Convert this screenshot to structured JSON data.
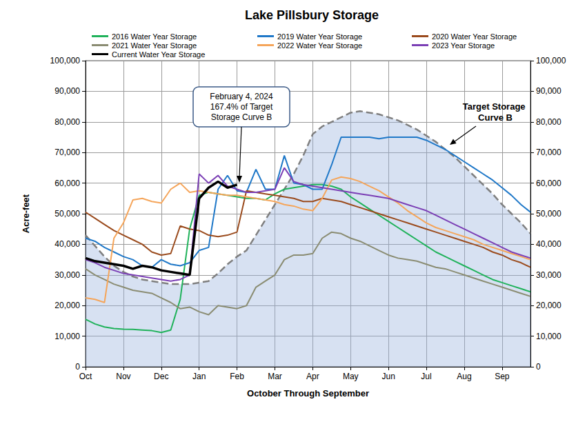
{
  "chart_data": {
    "type": "line",
    "title": "Lake Pillsbury Storage",
    "xlabel": "October Through September",
    "ylabel": "Acre-feet",
    "categories": [
      "Oct",
      null,
      null,
      null,
      "Nov",
      null,
      null,
      null,
      "Dec",
      null,
      null,
      null,
      "Jan",
      null,
      null,
      null,
      "Feb",
      null,
      null,
      null,
      "Mar",
      null,
      null,
      null,
      "Apr",
      null,
      null,
      null,
      "May",
      null,
      null,
      null,
      "Jun",
      null,
      null,
      null,
      "Jul",
      null,
      null,
      null,
      "Aug",
      null,
      null,
      null,
      "Sep",
      null,
      null,
      null
    ],
    "series": [
      {
        "name": "Target Storage Curve B",
        "type": "area",
        "line_style": "dashed",
        "color": "#7f7f7f",
        "values": [
          43000,
          39500,
          36000,
          33000,
          31000,
          29500,
          28500,
          28000,
          27500,
          27000,
          27000,
          27000,
          27500,
          28000,
          30500,
          33500,
          36000,
          38000,
          43000,
          48000,
          53000,
          58000,
          63000,
          69000,
          76000,
          78500,
          80000,
          81500,
          83000,
          83500,
          83000,
          82500,
          81500,
          80500,
          79000,
          77500,
          75500,
          73500,
          71000,
          68500,
          65500,
          62500,
          59500,
          56500,
          53000,
          50000,
          47000,
          43500
        ]
      },
      {
        "name": "2016 Water Year Storage",
        "color": "#1fb25a",
        "values": [
          15500,
          14000,
          13000,
          12500,
          12300,
          12200,
          12000,
          11800,
          11200,
          12000,
          22000,
          45000,
          56000,
          57000,
          56500,
          56000,
          55500,
          55000,
          55000,
          54500,
          56500,
          58000,
          58500,
          59000,
          59500,
          59500,
          59000,
          58000,
          55500,
          53500,
          51500,
          49500,
          47500,
          45500,
          43500,
          41500,
          39500,
          37500,
          36000,
          34500,
          33000,
          31500,
          30000,
          28500,
          27500,
          26500,
          25500,
          24500
        ]
      },
      {
        "name": "2019 Water Year Storage",
        "color": "#1f78c8",
        "values": [
          42000,
          41000,
          39000,
          37500,
          36000,
          35000,
          33000,
          32500,
          35000,
          33500,
          33000,
          34000,
          38000,
          39000,
          58000,
          62500,
          57500,
          57000,
          64500,
          58000,
          58000,
          69000,
          60000,
          59500,
          58000,
          58000,
          66000,
          75000,
          75000,
          75000,
          75000,
          74500,
          75000,
          75000,
          75000,
          75000,
          74000,
          72500,
          71000,
          69000,
          67000,
          65000,
          63000,
          61000,
          58500,
          56000,
          53000,
          50500
        ]
      },
      {
        "name": "2020 Water Year Storage",
        "color": "#9a4a1c",
        "values": [
          50500,
          48500,
          46500,
          44500,
          43000,
          41500,
          40000,
          37500,
          36500,
          37000,
          46000,
          45000,
          44500,
          43000,
          42500,
          43000,
          44000,
          57500,
          57000,
          56500,
          56000,
          55500,
          55000,
          54000,
          54000,
          55000,
          54500,
          54000,
          53000,
          52000,
          51000,
          50000,
          49000,
          48000,
          47000,
          46000,
          45000,
          44000,
          43000,
          42000,
          41000,
          40000,
          39000,
          37500,
          36500,
          35000,
          34000,
          32500
        ]
      },
      {
        "name": "2021 Water Year Storage",
        "color": "#8a8c72",
        "values": [
          32000,
          30000,
          28500,
          27000,
          26000,
          25000,
          24500,
          24000,
          22500,
          21000,
          19000,
          19500,
          18000,
          17000,
          20000,
          19500,
          19000,
          20000,
          26000,
          28000,
          30000,
          35000,
          36500,
          36500,
          37000,
          42000,
          44000,
          43500,
          42000,
          41000,
          39500,
          38000,
          36500,
          35500,
          35000,
          34500,
          33500,
          32500,
          32000,
          31000,
          30000,
          29000,
          28000,
          27000,
          26000,
          25000,
          24000,
          23000
        ]
      },
      {
        "name": "2022 Water Year Storage",
        "color": "#f5a55a",
        "values": [
          22500,
          22000,
          21000,
          42000,
          47000,
          54500,
          55000,
          54000,
          53500,
          58000,
          60000,
          57000,
          57500,
          57000,
          56500,
          56000,
          56000,
          55500,
          55000,
          54500,
          54000,
          53000,
          52500,
          51500,
          51000,
          55000,
          61000,
          62000,
          61500,
          60500,
          59000,
          57500,
          55500,
          53500,
          51000,
          49000,
          47000,
          45500,
          44500,
          43500,
          42500,
          41500,
          40000,
          39000,
          38000,
          37000,
          36000,
          35000
        ]
      },
      {
        "name": "2023 Year Storage",
        "color": "#7b3fb5",
        "values": [
          35000,
          34000,
          32500,
          31500,
          30500,
          30000,
          29500,
          29000,
          28500,
          28000,
          28500,
          30000,
          63000,
          60000,
          62500,
          59000,
          58000,
          57000,
          57000,
          57500,
          58000,
          65000,
          60500,
          59500,
          59000,
          58500,
          58000,
          57500,
          57000,
          56500,
          56000,
          55500,
          55000,
          54000,
          53000,
          52000,
          51000,
          49500,
          48000,
          46500,
          45000,
          43500,
          42000,
          40500,
          39000,
          37500,
          36500,
          35500
        ]
      },
      {
        "name": "Current Water Year Storage",
        "color": "#000000",
        "line_style": "thick",
        "values": [
          35500,
          34500,
          34000,
          33500,
          33000,
          32000,
          33000,
          32500,
          31500,
          31000,
          30500,
          30000,
          55000,
          58500,
          60500,
          58500,
          59500,
          null,
          null,
          null,
          null,
          null,
          null,
          null,
          null,
          null,
          null,
          null,
          null,
          null,
          null,
          null,
          null,
          null,
          null,
          null,
          null,
          null,
          null,
          null,
          null,
          null,
          null,
          null,
          null,
          null,
          null,
          null
        ]
      }
    ],
    "ylim": [
      0,
      100000
    ],
    "yticks": [
      0,
      {
        "value": 10000,
        "label": "10,000"
      },
      {
        "value": 20000,
        "label": "20,000"
      },
      {
        "value": 30000,
        "label": "30,000"
      },
      {
        "value": 40000,
        "label": "40,000"
      },
      {
        "value": 50000,
        "label": "50,000"
      },
      {
        "value": 60000,
        "label": "60,000"
      },
      {
        "value": 70000,
        "label": "70,000"
      },
      {
        "value": 80000,
        "label": "80,000"
      },
      {
        "value": 90000,
        "label": "90,000"
      },
      {
        "value": 100000,
        "label": "100,000"
      }
    ],
    "y2lim": [
      0,
      100000
    ],
    "y2ticks": [
      0,
      {
        "value": 10000,
        "label": "10,000"
      },
      {
        "value": 20000,
        "label": "20,000"
      },
      {
        "value": 30000,
        "label": "30,000"
      },
      {
        "value": 40000,
        "label": "40,000"
      },
      {
        "value": 50000,
        "label": "50,000"
      },
      {
        "value": 60000,
        "label": "60,000"
      },
      {
        "value": 70000,
        "label": "70,000"
      },
      {
        "value": 80000,
        "label": "80,000"
      },
      {
        "value": 90000,
        "label": "90,000"
      },
      {
        "value": 100000,
        "label": "100,000"
      }
    ],
    "grid": true,
    "legend": "top",
    "annotations": [
      "February 4, 2024\n167.4% of Target\nStorage Curve B"
    ]
  }
}
